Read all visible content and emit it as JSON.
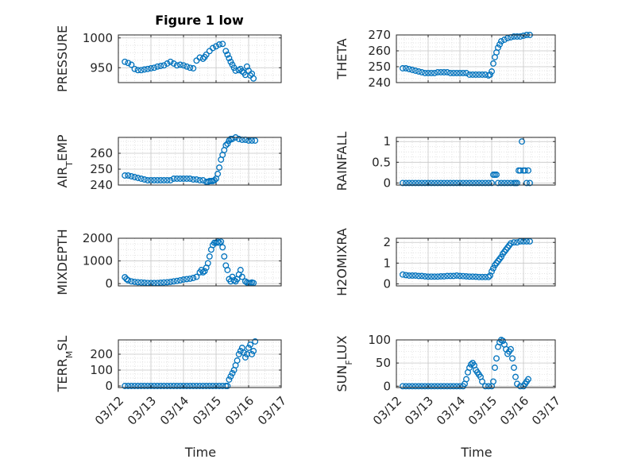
{
  "figure": {
    "title": "Figure 1 low"
  },
  "style": {
    "marker_color": "#0072BD",
    "axis_color": "#262626",
    "grid_color": "#d9d9d9"
  },
  "x_axis": {
    "label": "Time",
    "ticks": [
      12,
      13,
      14,
      15,
      16,
      17
    ],
    "tick_labels": [
      "03/12",
      "03/13",
      "03/14",
      "03/15",
      "03/16",
      "03/17"
    ]
  },
  "chart_data": [
    {
      "id": "pressure",
      "type": "scatter",
      "ylabel": "PRESSURE",
      "title": "Figure 1 low",
      "xlim": [
        12,
        17
      ],
      "ylim": [
        925,
        1005
      ],
      "yticks": [
        950,
        1000
      ],
      "ytick_labels": [
        "950",
        "1000"
      ],
      "x": [
        12.2,
        12.3,
        12.4,
        12.5,
        12.6,
        12.7,
        12.8,
        12.9,
        13.0,
        13.1,
        13.2,
        13.3,
        13.4,
        13.5,
        13.6,
        13.7,
        13.8,
        13.9,
        14.0,
        14.1,
        14.2,
        14.3,
        14.4,
        14.5,
        14.6,
        14.65,
        14.7,
        14.8,
        14.9,
        15.0,
        15.1,
        15.2,
        15.3,
        15.35,
        15.4,
        15.45,
        15.5,
        15.55,
        15.6,
        15.7,
        15.75,
        15.8,
        15.85,
        15.9,
        15.95,
        16.0,
        16.05,
        16.1,
        16.15
      ],
      "y": [
        960,
        958,
        955,
        948,
        946,
        946,
        947,
        948,
        949,
        950,
        952,
        953,
        954,
        957,
        960,
        957,
        954,
        955,
        954,
        952,
        950,
        949,
        962,
        967,
        965,
        968,
        972,
        978,
        983,
        986,
        989,
        990,
        978,
        972,
        966,
        960,
        955,
        950,
        945,
        946,
        948,
        944,
        942,
        938,
        952,
        945,
        937,
        940,
        932
      ]
    },
    {
      "id": "theta",
      "type": "scatter",
      "ylabel": "THETA",
      "xlim": [
        12,
        17
      ],
      "ylim": [
        240,
        270
      ],
      "yticks": [
        240,
        250,
        260,
        270
      ],
      "ytick_labels": [
        "240",
        "250",
        "260",
        "270"
      ],
      "x": [
        12.2,
        12.3,
        12.4,
        12.5,
        12.6,
        12.7,
        12.8,
        12.9,
        13.0,
        13.1,
        13.2,
        13.3,
        13.4,
        13.5,
        13.6,
        13.7,
        13.8,
        13.9,
        14.0,
        14.1,
        14.2,
        14.3,
        14.4,
        14.5,
        14.6,
        14.7,
        14.8,
        14.9,
        14.95,
        15.0,
        15.05,
        15.1,
        15.15,
        15.2,
        15.25,
        15.3,
        15.4,
        15.5,
        15.6,
        15.7,
        15.8,
        15.9,
        16.0,
        16.1,
        16.2
      ],
      "y": [
        249,
        249,
        248.5,
        248,
        247.5,
        247,
        246.5,
        246,
        246,
        246,
        246,
        246.5,
        246.5,
        246.5,
        246.5,
        246,
        246,
        246,
        246,
        246,
        246,
        245,
        245,
        245,
        245,
        245,
        245,
        244.5,
        245,
        247,
        252,
        256,
        259,
        262,
        264,
        266,
        267,
        268,
        268.5,
        269,
        269,
        269,
        269.5,
        270,
        270
      ]
    },
    {
      "id": "air_temp",
      "type": "scatter",
      "ylabel": "AIR_TEMP",
      "xlim": [
        12,
        17
      ],
      "ylim": [
        240,
        270
      ],
      "yticks": [
        240,
        250,
        260
      ],
      "ytick_labels": [
        "240",
        "250",
        "260"
      ],
      "x": [
        12.2,
        12.3,
        12.4,
        12.5,
        12.6,
        12.7,
        12.8,
        12.9,
        13.0,
        13.1,
        13.2,
        13.3,
        13.4,
        13.5,
        13.6,
        13.7,
        13.8,
        13.9,
        14.0,
        14.1,
        14.2,
        14.3,
        14.4,
        14.5,
        14.6,
        14.7,
        14.75,
        14.8,
        14.85,
        14.9,
        14.95,
        15.0,
        15.05,
        15.1,
        15.15,
        15.2,
        15.25,
        15.3,
        15.35,
        15.4,
        15.45,
        15.5,
        15.6,
        15.7,
        15.8,
        15.9,
        16.0,
        16.1,
        16.2
      ],
      "y": [
        246,
        246,
        245.5,
        245,
        244.5,
        244,
        243.5,
        243,
        243,
        243,
        243,
        243,
        243,
        243,
        243,
        244,
        244,
        244,
        244,
        244,
        244,
        243.5,
        243.5,
        243,
        243,
        242,
        242,
        242.5,
        242.5,
        242.5,
        243,
        244,
        247,
        251,
        256,
        259,
        262,
        265,
        266,
        268,
        269,
        269,
        270,
        269,
        268.5,
        268.5,
        268,
        268,
        268
      ]
    },
    {
      "id": "rainfall",
      "type": "scatter",
      "ylabel": "RAINFALL",
      "xlim": [
        12,
        17
      ],
      "ylim": [
        -0.05,
        1.1
      ],
      "yticks": [
        0,
        0.5,
        1
      ],
      "ytick_labels": [
        "0",
        "0.5",
        "1"
      ],
      "x": [
        12.2,
        12.3,
        12.4,
        12.5,
        12.6,
        12.7,
        12.8,
        12.9,
        13.0,
        13.1,
        13.2,
        13.3,
        13.4,
        13.5,
        13.6,
        13.7,
        13.8,
        13.9,
        14.0,
        14.1,
        14.2,
        14.3,
        14.4,
        14.5,
        14.6,
        14.7,
        14.8,
        14.9,
        15.0,
        15.05,
        15.1,
        15.15,
        15.2,
        15.3,
        15.4,
        15.5,
        15.6,
        15.7,
        15.75,
        15.8,
        15.85,
        15.9,
        15.95,
        16.0,
        16.05,
        16.1,
        16.15,
        16.2
      ],
      "y": [
        0,
        0,
        0,
        0,
        0,
        0,
        0,
        0,
        0,
        0,
        0,
        0,
        0,
        0,
        0,
        0,
        0,
        0,
        0,
        0,
        0,
        0,
        0,
        0,
        0,
        0,
        0,
        0,
        0,
        0.2,
        0.2,
        0.2,
        0,
        0,
        0,
        0,
        0,
        0,
        0,
        0,
        0.3,
        0.3,
        1.0,
        0.3,
        0.3,
        0,
        0.3,
        0
      ]
    },
    {
      "id": "mixdepth",
      "type": "scatter",
      "ylabel": "MIXDEPTH",
      "xlim": [
        12,
        17
      ],
      "ylim": [
        -100,
        2000
      ],
      "yticks": [
        0,
        1000,
        2000
      ],
      "ytick_labels": [
        "0",
        "1000",
        "2000"
      ],
      "x": [
        12.2,
        12.25,
        12.3,
        12.4,
        12.5,
        12.6,
        12.7,
        12.8,
        12.9,
        13.0,
        13.1,
        13.2,
        13.3,
        13.4,
        13.5,
        13.6,
        13.7,
        13.8,
        13.9,
        14.0,
        14.1,
        14.2,
        14.3,
        14.4,
        14.5,
        14.55,
        14.6,
        14.65,
        14.7,
        14.75,
        14.8,
        14.85,
        14.9,
        14.95,
        15.0,
        15.05,
        15.1,
        15.15,
        15.2,
        15.25,
        15.3,
        15.35,
        15.4,
        15.45,
        15.5,
        15.55,
        15.6,
        15.65,
        15.7,
        15.75,
        15.8,
        15.9,
        15.95,
        16.0,
        16.05,
        16.1,
        16.15
      ],
      "y": [
        280,
        200,
        150,
        100,
        80,
        60,
        50,
        40,
        30,
        30,
        30,
        30,
        40,
        50,
        60,
        80,
        100,
        120,
        150,
        180,
        200,
        220,
        250,
        300,
        500,
        600,
        500,
        550,
        700,
        900,
        1200,
        1500,
        1700,
        1800,
        1800,
        1850,
        1800,
        1850,
        1600,
        1200,
        800,
        600,
        200,
        100,
        300,
        150,
        100,
        200,
        400,
        600,
        300,
        100,
        50,
        30,
        20,
        50,
        30
      ]
    },
    {
      "id": "h2omixra",
      "type": "scatter",
      "ylabel": "H2OMIXRA",
      "xlim": [
        12,
        17
      ],
      "ylim": [
        -0.1,
        2.2
      ],
      "yticks": [
        0,
        1,
        2
      ],
      "ytick_labels": [
        "0",
        "1",
        "2"
      ],
      "x": [
        12.2,
        12.3,
        12.4,
        12.5,
        12.6,
        12.7,
        12.8,
        12.9,
        13.0,
        13.1,
        13.2,
        13.3,
        13.4,
        13.5,
        13.6,
        13.7,
        13.8,
        13.9,
        14.0,
        14.1,
        14.2,
        14.3,
        14.4,
        14.5,
        14.6,
        14.7,
        14.8,
        14.9,
        14.95,
        15.0,
        15.05,
        15.1,
        15.15,
        15.2,
        15.25,
        15.3,
        15.35,
        15.4,
        15.45,
        15.5,
        15.55,
        15.6,
        15.7,
        15.8,
        15.9,
        16.0,
        16.1,
        16.2
      ],
      "y": [
        0.45,
        0.42,
        0.4,
        0.4,
        0.4,
        0.38,
        0.38,
        0.36,
        0.35,
        0.35,
        0.35,
        0.35,
        0.36,
        0.36,
        0.38,
        0.38,
        0.38,
        0.4,
        0.38,
        0.37,
        0.36,
        0.35,
        0.35,
        0.34,
        0.33,
        0.33,
        0.33,
        0.33,
        0.4,
        0.6,
        0.75,
        0.9,
        1.0,
        1.1,
        1.2,
        1.3,
        1.45,
        1.55,
        1.65,
        1.75,
        1.85,
        1.95,
        2.0,
        2.0,
        2.05,
        2.05,
        2.05,
        2.05
      ]
    },
    {
      "id": "terr_msl",
      "type": "scatter",
      "ylabel": "TERR_MSL",
      "xlabel": "Time",
      "xlim": [
        12,
        17
      ],
      "ylim": [
        -10,
        290
      ],
      "yticks": [
        0,
        100,
        200
      ],
      "ytick_labels": [
        "0",
        "100",
        "200"
      ],
      "x": [
        12.2,
        12.3,
        12.4,
        12.5,
        12.6,
        12.7,
        12.8,
        12.9,
        13.0,
        13.1,
        13.2,
        13.3,
        13.4,
        13.5,
        13.6,
        13.7,
        13.8,
        13.9,
        14.0,
        14.1,
        14.2,
        14.3,
        14.4,
        14.5,
        14.6,
        14.7,
        14.8,
        14.9,
        15.0,
        15.1,
        15.2,
        15.3,
        15.35,
        15.4,
        15.45,
        15.5,
        15.55,
        15.6,
        15.65,
        15.7,
        15.75,
        15.8,
        15.85,
        15.9,
        15.95,
        16.0,
        16.05,
        16.1,
        16.15,
        16.2
      ],
      "y": [
        0,
        0,
        0,
        0,
        0,
        0,
        0,
        0,
        0,
        0,
        0,
        0,
        0,
        0,
        0,
        0,
        0,
        0,
        0,
        0,
        0,
        0,
        0,
        0,
        0,
        0,
        0,
        0,
        0,
        0,
        0,
        0,
        0,
        40,
        60,
        80,
        100,
        130,
        160,
        200,
        220,
        240,
        210,
        180,
        200,
        240,
        260,
        200,
        220,
        280
      ]
    },
    {
      "id": "sun_flux",
      "type": "scatter",
      "ylabel": "SUN_FLUX",
      "xlabel": "Time",
      "xlim": [
        12,
        17
      ],
      "ylim": [
        -3,
        100
      ],
      "yticks": [
        0,
        50,
        100
      ],
      "ytick_labels": [
        "0",
        "50",
        "100"
      ],
      "x": [
        12.2,
        12.3,
        12.4,
        12.5,
        12.6,
        12.7,
        12.8,
        12.9,
        13.0,
        13.1,
        13.2,
        13.3,
        13.4,
        13.5,
        13.6,
        13.7,
        13.8,
        13.9,
        14.0,
        14.1,
        14.15,
        14.2,
        14.25,
        14.3,
        14.35,
        14.4,
        14.45,
        14.5,
        14.55,
        14.6,
        14.65,
        14.7,
        14.8,
        14.9,
        15.0,
        15.05,
        15.1,
        15.15,
        15.2,
        15.25,
        15.3,
        15.35,
        15.4,
        15.45,
        15.5,
        15.55,
        15.6,
        15.65,
        15.7,
        15.75,
        15.8,
        15.9,
        16.0,
        16.05,
        16.1,
        16.15
      ],
      "y": [
        0,
        0,
        0,
        0,
        0,
        0,
        0,
        0,
        0,
        0,
        0,
        0,
        0,
        0,
        0,
        0,
        0,
        0,
        0,
        0,
        5,
        15,
        30,
        40,
        47,
        50,
        45,
        35,
        30,
        25,
        20,
        10,
        0,
        0,
        0,
        10,
        40,
        60,
        85,
        95,
        100,
        98,
        90,
        80,
        70,
        75,
        80,
        60,
        40,
        20,
        5,
        0,
        0,
        5,
        10,
        15
      ]
    }
  ]
}
